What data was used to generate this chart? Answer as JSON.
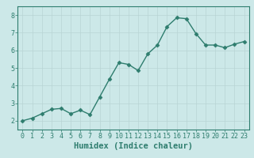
{
  "x": [
    0,
    1,
    2,
    3,
    4,
    5,
    6,
    7,
    8,
    9,
    10,
    11,
    12,
    13,
    14,
    15,
    16,
    17,
    18,
    19,
    20,
    21,
    22,
    23
  ],
  "y": [
    2.0,
    2.15,
    2.4,
    2.65,
    2.7,
    2.4,
    2.6,
    2.35,
    3.35,
    4.35,
    5.3,
    5.2,
    4.85,
    5.8,
    6.3,
    7.35,
    7.85,
    7.8,
    6.95,
    6.3,
    6.3,
    6.15,
    6.35,
    6.5
  ],
  "line_color": "#2e7d6e",
  "marker": "D",
  "marker_size": 2.5,
  "line_width": 1.0,
  "xlabel": "Humidex (Indice chaleur)",
  "ylim": [
    1.5,
    8.5
  ],
  "xlim": [
    -0.5,
    23.5
  ],
  "yticks": [
    2,
    3,
    4,
    5,
    6,
    7,
    8
  ],
  "xticks": [
    0,
    1,
    2,
    3,
    4,
    5,
    6,
    7,
    8,
    9,
    10,
    11,
    12,
    13,
    14,
    15,
    16,
    17,
    18,
    19,
    20,
    21,
    22,
    23
  ],
  "bg_color": "#cce8e8",
  "grid_color": "#b8d4d4",
  "line_color_spine": "#2e7d6e",
  "label_color": "#2e7d6e",
  "xlabel_fontsize": 7.5,
  "tick_fontsize": 6.0
}
